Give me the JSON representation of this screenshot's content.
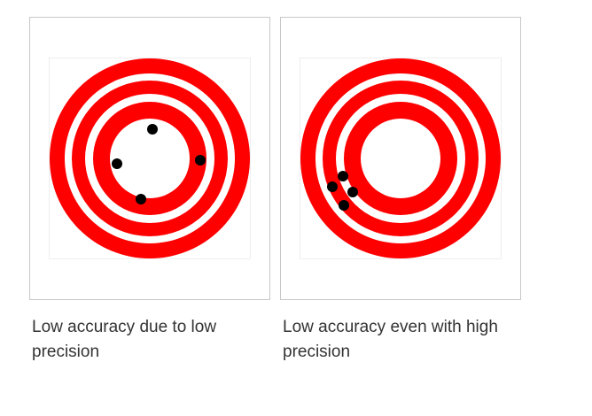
{
  "colors": {
    "ring": "#ff0000",
    "gap": "#ffffff",
    "shot": "#000000",
    "border": "#c8c8c8",
    "text": "#333333"
  },
  "panels": [
    {
      "caption": "Low accuracy due to low precision",
      "shots": [
        [
          3,
          -33
        ],
        [
          -37,
          6
        ],
        [
          57,
          2
        ],
        [
          -10,
          46
        ]
      ]
    },
    {
      "caption": "Low accuracy even with high precision",
      "shots": [
        [
          -65,
          20
        ],
        [
          -77,
          32
        ],
        [
          -54,
          38
        ],
        [
          -64,
          53
        ]
      ]
    }
  ]
}
